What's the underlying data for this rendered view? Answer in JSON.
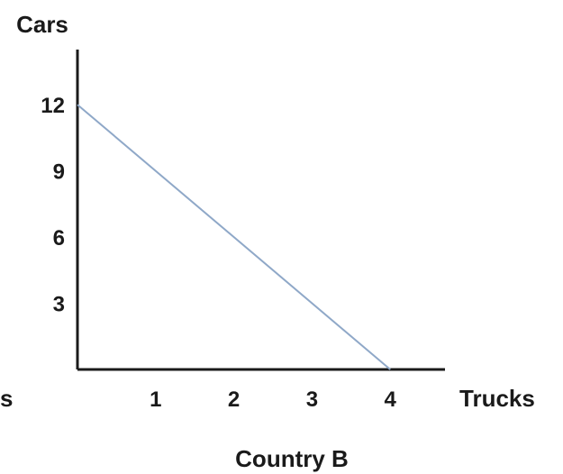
{
  "chart_data": {
    "type": "line",
    "title": "",
    "caption": "Country B",
    "xlabel": "Trucks",
    "ylabel": "Cars",
    "left_edge_fragment": "s",
    "xlim": [
      0,
      4.7
    ],
    "ylim": [
      0,
      14.5
    ],
    "x_ticks": [
      "1",
      "2",
      "3",
      "4"
    ],
    "y_ticks": [
      "3",
      "6",
      "9",
      "12"
    ],
    "series": [
      {
        "color": "#8fa8c8",
        "x": [
          0,
          4
        ],
        "y": [
          12,
          0
        ]
      }
    ]
  },
  "colors": {
    "axis": "#1a1a1a",
    "line": "#8fa8c8"
  }
}
